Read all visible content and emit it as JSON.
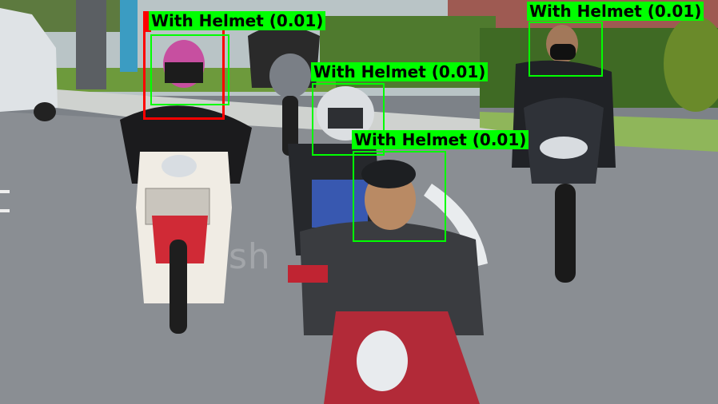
{
  "detections": [
    {
      "label": "With Helmet (0.01)",
      "color": "#00ff00"
    },
    {
      "label": "With Helmet (0.01)",
      "color": "#00ff00"
    },
    {
      "label": "With Helmet (0.01)",
      "color": "#00ff00"
    },
    {
      "label": "With Helmet (0.01)",
      "color": "#00ff00"
    },
    {
      "label": "",
      "color": "#ff0000"
    }
  ],
  "watermark": "sh"
}
